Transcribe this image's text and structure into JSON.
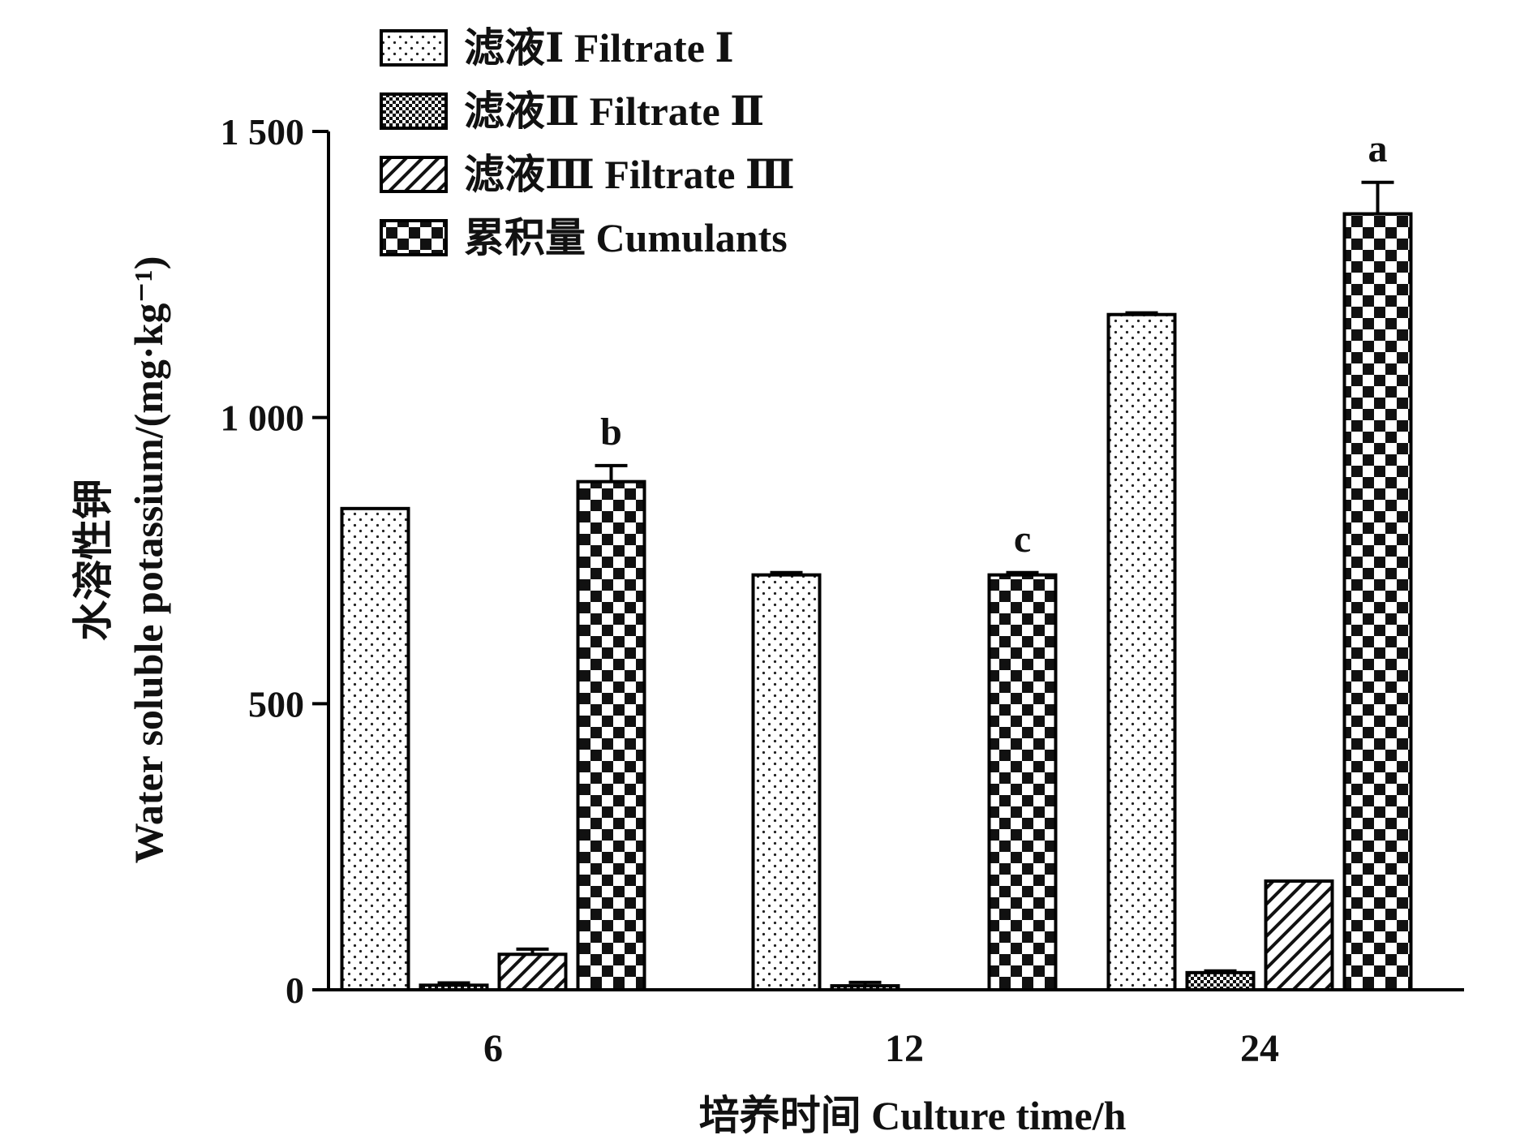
{
  "chart_data": {
    "type": "bar",
    "categories": [
      "6",
      "12",
      "24"
    ],
    "xlabel": "培养时间 Culture time/h",
    "ylabel_line1": "水溶性钾",
    "ylabel_line2": "Water soluble potassium/(mg·kg⁻¹)",
    "ylim": [
      0,
      1500
    ],
    "yticks": [
      {
        "value": 0,
        "label": "0"
      },
      {
        "value": 500,
        "label": "500"
      },
      {
        "value": 1000,
        "label": "1 000"
      },
      {
        "value": 1500,
        "label": "1 500"
      }
    ],
    "series": [
      {
        "name": "滤液Ⅰ Filtrate Ⅰ",
        "pattern": "dots",
        "values": [
          841,
          725,
          1180
        ],
        "errors": [
          0,
          4,
          3
        ]
      },
      {
        "name": "滤液Ⅱ Filtrate Ⅱ",
        "pattern": "dense-check",
        "values": [
          8,
          7,
          30
        ],
        "errors": [
          4,
          6,
          3
        ]
      },
      {
        "name": "滤液Ⅲ Filtrate Ⅲ",
        "pattern": "hatch",
        "values": [
          62,
          0,
          190
        ],
        "errors": [
          9,
          0,
          0
        ]
      },
      {
        "name": "累积量 Cumulants",
        "pattern": "checker",
        "values": [
          888,
          725,
          1356
        ],
        "errors": [
          28,
          4,
          55
        ]
      }
    ],
    "significance": [
      {
        "category": "6",
        "series": "累积量 Cumulants",
        "label": "b"
      },
      {
        "category": "12",
        "series": "累积量 Cumulants",
        "label": "c"
      },
      {
        "category": "24",
        "series": "累积量 Cumulants",
        "label": "a"
      }
    ],
    "grid": false,
    "legend_position": "top-left"
  }
}
